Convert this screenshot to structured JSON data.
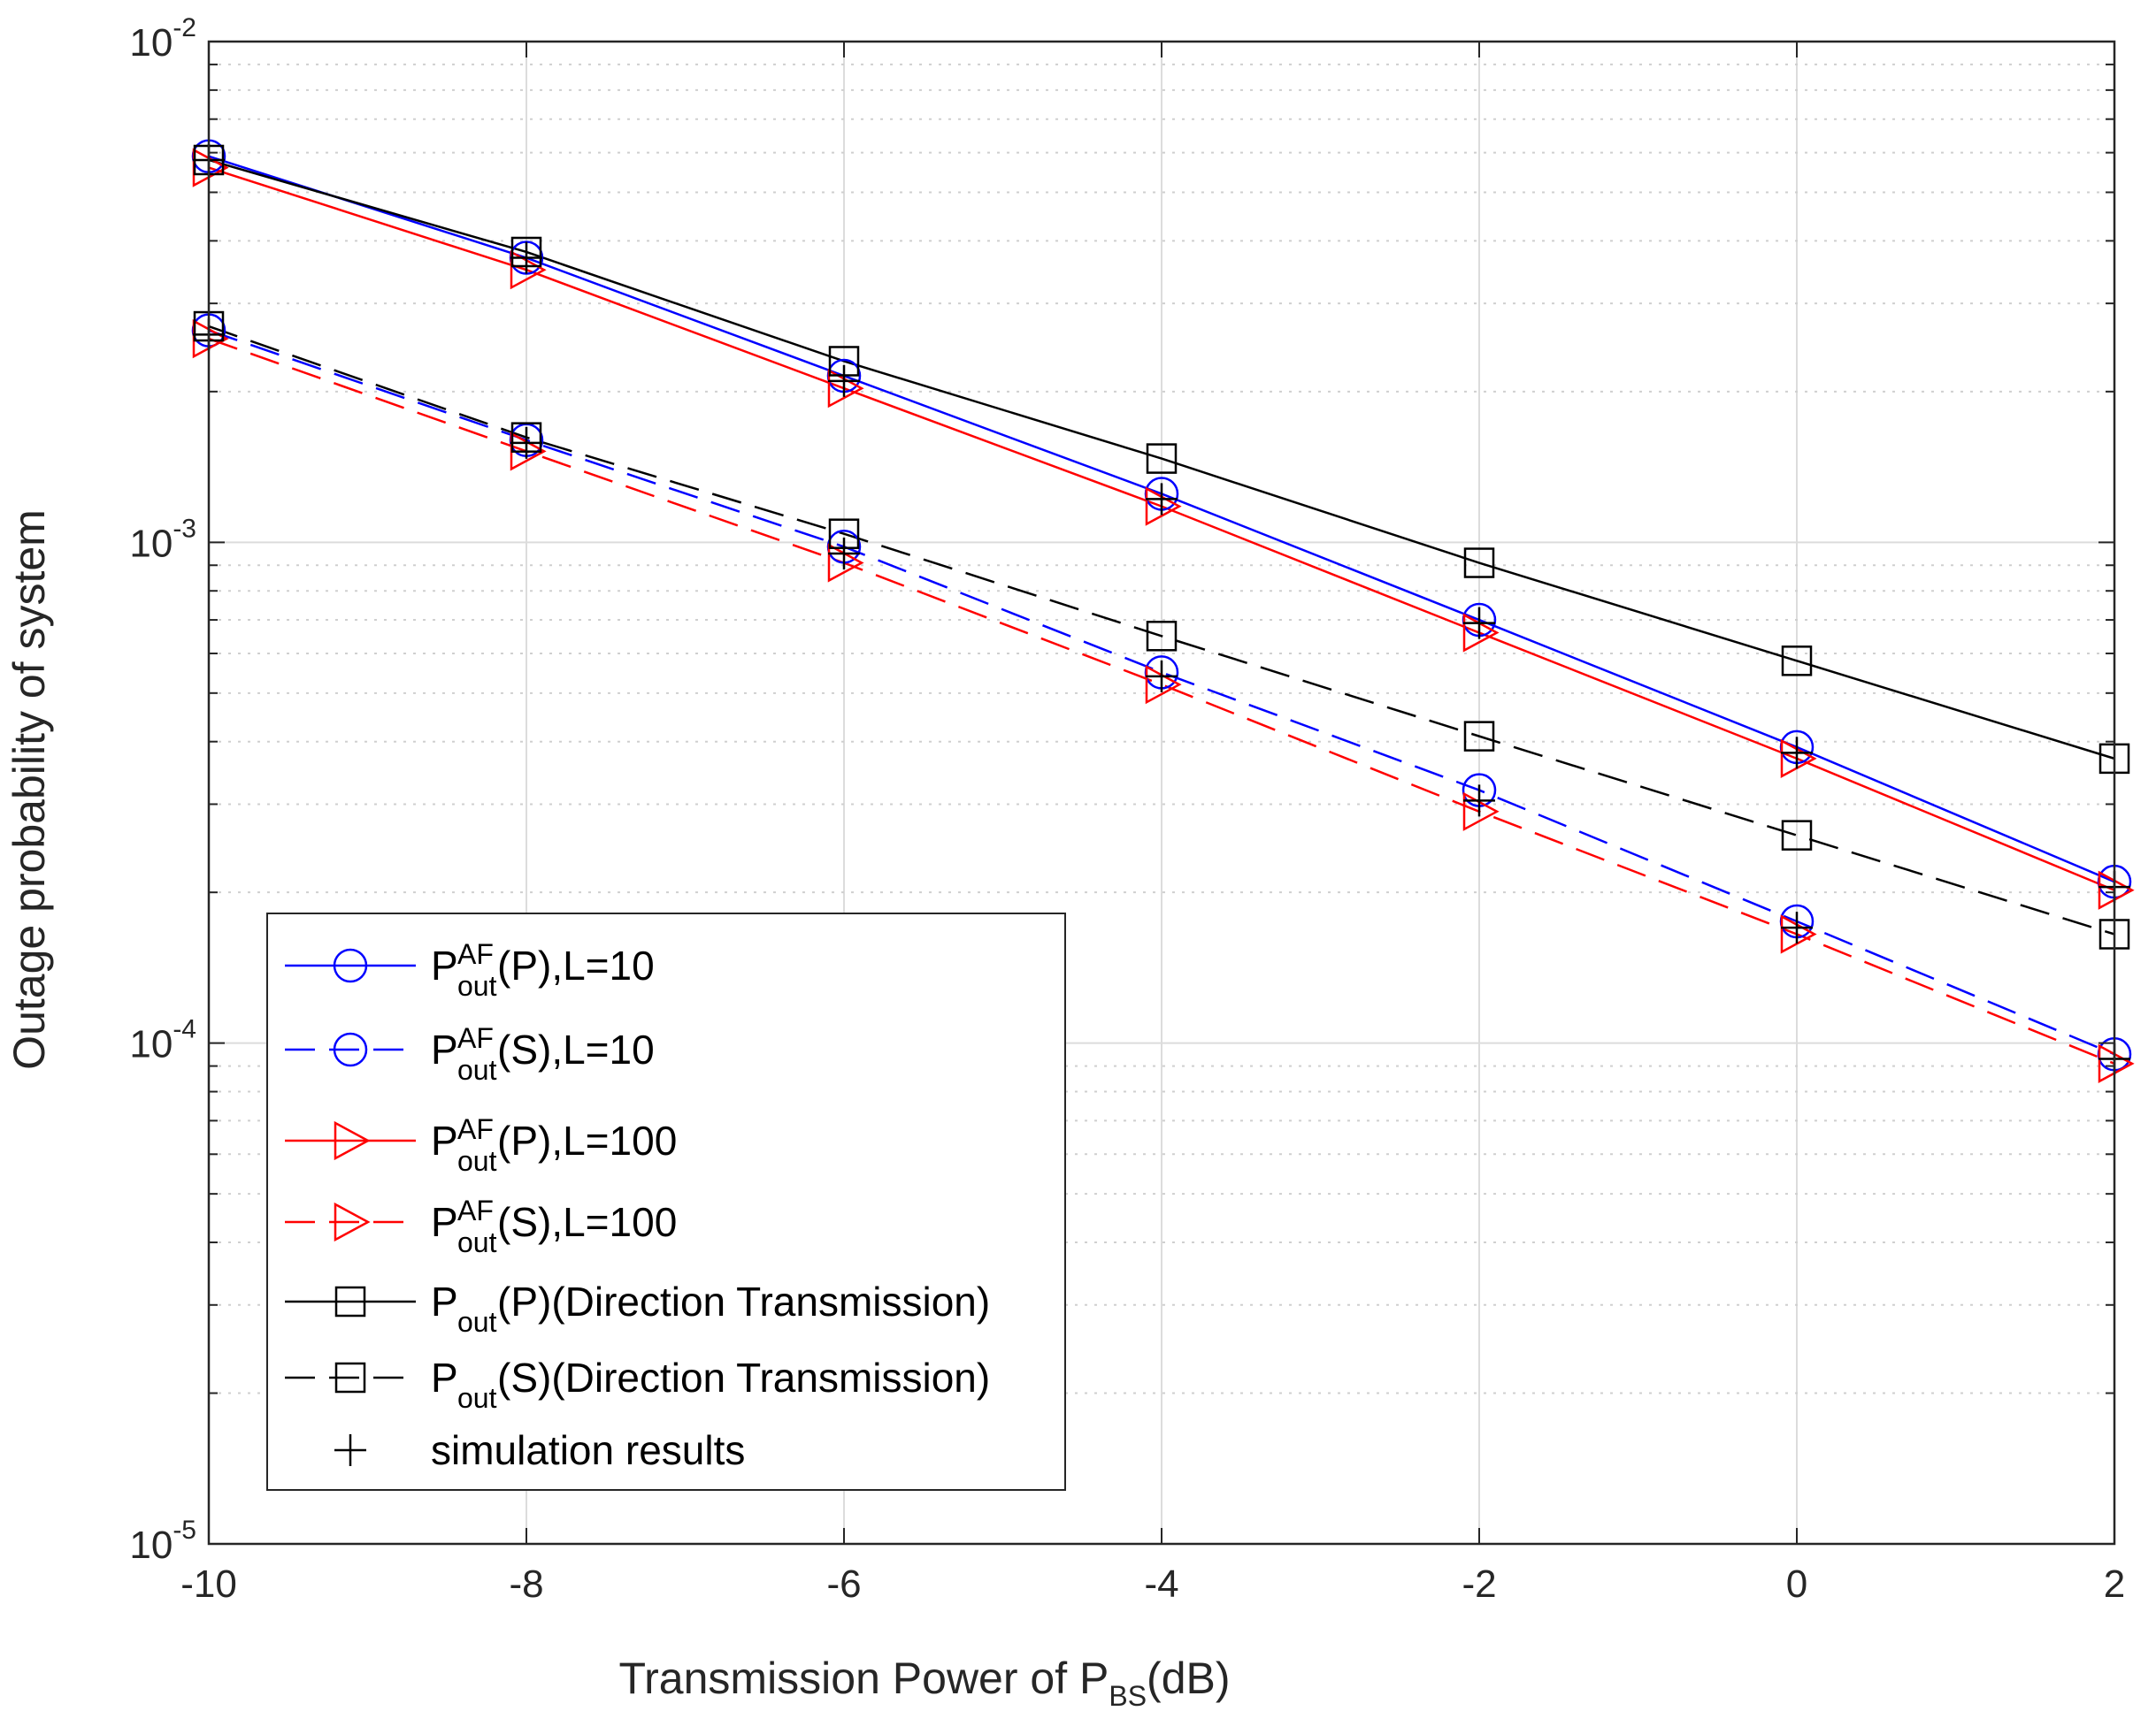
{
  "chart_data": {
    "type": "line",
    "title": "",
    "xlabel": {
      "main": "Transmission Power of P",
      "sub": "BS",
      "tail": "(dB)"
    },
    "ylabel": "Outage probability of system",
    "yscale": "log",
    "xlim": [
      -10,
      2
    ],
    "ylim": [
      1e-05,
      0.01
    ],
    "grid": true,
    "x": [
      -10,
      -8,
      -6,
      -4,
      -2,
      0,
      2
    ],
    "x_tick_labels": [
      "-10",
      "-8",
      "-6",
      "-4",
      "-2",
      "0",
      "2"
    ],
    "y_ticks": [
      {
        "value": 0.01,
        "base": "10",
        "exp": "-2"
      },
      {
        "value": 0.001,
        "base": "10",
        "exp": "-3"
      },
      {
        "value": 0.0001,
        "base": "10",
        "exp": "-4"
      },
      {
        "value": 1e-05,
        "base": "10",
        "exp": "-5"
      }
    ],
    "legend_position": "bottom-left",
    "series": [
      {
        "id": "af-p-l10",
        "label": {
          "base": "P",
          "sup": "AF",
          "sub": "out",
          "tail": "(P),L=10"
        },
        "color": "#0000ff",
        "dash": "solid",
        "marker": "circle",
        "values": [
          0.0059,
          0.0037,
          0.00215,
          0.00125,
          0.0007,
          0.00039,
          0.00021
        ]
      },
      {
        "id": "af-s-l10",
        "label": {
          "base": "P",
          "sup": "AF",
          "sub": "out",
          "tail": "(S),L=10"
        },
        "color": "#0000ff",
        "dash": "dashed",
        "marker": "circle",
        "values": [
          0.00265,
          0.0016,
          0.00098,
          0.00055,
          0.00032,
          0.000175,
          9.5e-05
        ]
      },
      {
        "id": "af-p-l100",
        "label": {
          "base": "P",
          "sup": "AF",
          "sub": "out",
          "tail": "(P),L=100"
        },
        "color": "#ff0000",
        "dash": "solid",
        "marker": "triangle-right",
        "values": [
          0.0056,
          0.0035,
          0.00203,
          0.00118,
          0.00066,
          0.00037,
          0.000202
        ]
      },
      {
        "id": "af-s-l100",
        "label": {
          "base": "P",
          "sup": "AF",
          "sub": "out",
          "tail": "(S),L=100"
        },
        "color": "#ff0000",
        "dash": "dashed",
        "marker": "triangle-right",
        "values": [
          0.00255,
          0.00152,
          0.00091,
          0.00052,
          0.00029,
          0.000165,
          9.1e-05
        ]
      },
      {
        "id": "direct-p",
        "label": {
          "base": "P",
          "sup": "",
          "sub": "out",
          "tail": "(P)(Direction Transmission)"
        },
        "color": "#000000",
        "dash": "solid",
        "marker": "square",
        "values": [
          0.0058,
          0.0038,
          0.0023,
          0.00147,
          0.00091,
          0.00058,
          0.00037
        ]
      },
      {
        "id": "direct-s",
        "label": {
          "base": "P",
          "sup": "",
          "sub": "out",
          "tail": "(S)(Direction Transmission)"
        },
        "color": "#000000",
        "dash": "dashed",
        "marker": "square",
        "values": [
          0.0027,
          0.00162,
          0.00104,
          0.00065,
          0.00041,
          0.00026,
          0.000165
        ]
      }
    ],
    "simulation": {
      "label": "simulation results",
      "color": "#000000",
      "marker": "plus",
      "points": [
        {
          "x": -10,
          "y": 0.0058
        },
        {
          "x": -8,
          "y": 0.0037
        },
        {
          "x": -6,
          "y": 0.0021
        },
        {
          "x": -4,
          "y": 0.00122
        },
        {
          "x": -2,
          "y": 0.00069
        },
        {
          "x": 0,
          "y": 0.00038
        },
        {
          "x": 2,
          "y": 0.000205
        },
        {
          "x": -10,
          "y": 0.0026
        },
        {
          "x": -8,
          "y": 0.00158
        },
        {
          "x": -6,
          "y": 0.00095
        },
        {
          "x": -4,
          "y": 0.00054
        },
        {
          "x": -2,
          "y": 0.000305
        },
        {
          "x": 0,
          "y": 0.00017
        },
        {
          "x": 2,
          "y": 9.3e-05
        }
      ]
    }
  }
}
